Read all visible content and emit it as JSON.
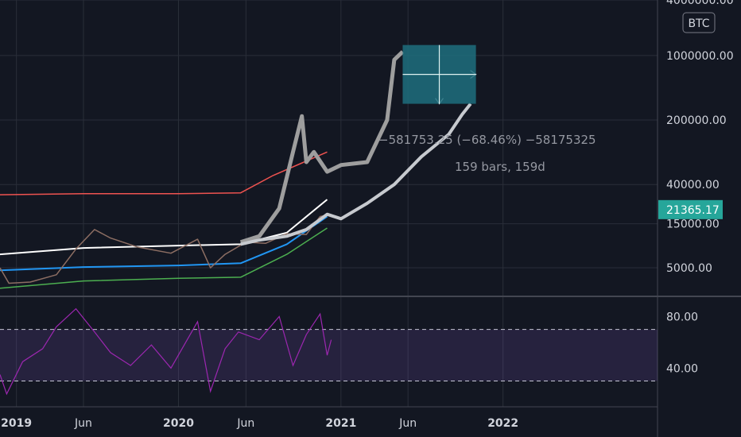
{
  "chart_data": {
    "type": "line",
    "symbol_badge": "BTC",
    "y_scale": "log",
    "price_axis": {
      "ylim": [
        2500,
        4000000
      ],
      "ticks": [
        {
          "value": 4000000,
          "label": "4000000.00"
        },
        {
          "value": 1000000,
          "label": "1000000.00"
        },
        {
          "value": 200000,
          "label": "200000.00"
        },
        {
          "value": 40000,
          "label": "40000.00"
        },
        {
          "value": 15000,
          "label": "15000.00"
        },
        {
          "value": 5000,
          "label": "5000.00"
        }
      ],
      "current_price": {
        "value": 21365.17,
        "label": "21365.17",
        "color": "#26a69a"
      }
    },
    "rsi_axis": {
      "ylim": [
        10,
        95
      ],
      "ticks": [
        {
          "value": 80,
          "label": "80.00"
        },
        {
          "value": 40,
          "label": "40.00"
        }
      ],
      "band": [
        30,
        70
      ]
    },
    "x_axis": {
      "xlim": [
        "2018-11-25",
        "2022-12-15"
      ],
      "ticks": [
        {
          "date": "2019-01-01",
          "label": "2019",
          "major": true
        },
        {
          "date": "2019-06-01",
          "label": "Jun",
          "major": false
        },
        {
          "date": "2020-01-01",
          "label": "2020",
          "major": true
        },
        {
          "date": "2020-06-01",
          "label": "Jun",
          "major": false
        },
        {
          "date": "2021-01-01",
          "label": "2021",
          "major": true
        },
        {
          "date": "2021-06-01",
          "label": "Jun",
          "major": false
        },
        {
          "date": "2022-01-01",
          "label": "2022",
          "major": true
        }
      ]
    },
    "series": [
      {
        "name": "",
        "role": "red-band",
        "color": "#ef5350",
        "x": [
          "2018-11-25",
          "2019-06-01",
          "2020-01-01",
          "2020-05-20",
          "2020-08-01",
          "2020-12-01"
        ],
        "y": [
          31000,
          31800,
          31800,
          32500,
          50000,
          90000
        ]
      },
      {
        "name": "",
        "role": "white-ma",
        "color": "#ffffff",
        "x": [
          "2018-11-25",
          "2019-06-01",
          "2020-01-01",
          "2020-05-20",
          "2020-09-01",
          "2020-12-01"
        ],
        "y": [
          7000,
          8200,
          8700,
          9000,
          12000,
          27500
        ]
      },
      {
        "name": "",
        "role": "blue-band",
        "color": "#2196f3",
        "x": [
          "2018-11-25",
          "2019-06-01",
          "2020-01-01",
          "2020-05-20",
          "2020-09-01",
          "2020-12-01"
        ],
        "y": [
          4700,
          5100,
          5300,
          5600,
          9000,
          18000
        ]
      },
      {
        "name": "",
        "role": "green-band",
        "color": "#4caf50",
        "x": [
          "2018-11-25",
          "2019-06-01",
          "2020-01-01",
          "2020-05-20",
          "2020-09-01",
          "2020-12-01"
        ],
        "y": [
          3000,
          3600,
          3850,
          3950,
          7000,
          13500
        ]
      },
      {
        "name": "",
        "role": "price-candles",
        "color": "#8d6e63",
        "x": [
          "2018-11-25",
          "2018-12-15",
          "2019-02-01",
          "2019-04-01",
          "2019-05-15",
          "2019-06-26",
          "2019-08-01",
          "2019-10-01",
          "2019-12-15",
          "2020-02-13",
          "2020-03-13",
          "2020-04-15",
          "2020-06-01",
          "2020-07-15",
          "2020-09-01",
          "2020-10-15",
          "2020-11-15",
          "2020-12-10"
        ],
        "y": [
          5000,
          3400,
          3500,
          4200,
          8000,
          13000,
          10500,
          8400,
          7200,
          10200,
          5000,
          7000,
          9500,
          9200,
          11700,
          11500,
          18000,
          19000
        ]
      },
      {
        "name": "",
        "role": "fractal-gray",
        "color": "#9e9e9e",
        "x": [
          "2020-05-20",
          "2020-07-01",
          "2020-08-15",
          "2020-09-15",
          "2020-10-05",
          "2020-10-15",
          "2020-11-01",
          "2020-12-01",
          "2021-01-01",
          "2021-03-01",
          "2021-04-15",
          "2021-05-01",
          "2021-05-20"
        ],
        "y": [
          9500,
          11000,
          22000,
          90000,
          220000,
          70000,
          90000,
          55000,
          65000,
          70000,
          200000,
          900000,
          1100000
        ]
      },
      {
        "name": "",
        "role": "fractal-white",
        "color": "#c7cacf",
        "x": [
          "2020-05-20",
          "2020-07-01",
          "2020-09-01",
          "2020-10-15",
          "2020-12-01",
          "2021-01-01",
          "2021-03-01",
          "2021-05-01",
          "2021-07-01",
          "2021-09-01",
          "2021-10-01",
          "2021-10-20"
        ],
        "y": [
          9000,
          10000,
          11000,
          13000,
          19000,
          17000,
          25000,
          40000,
          80000,
          140000,
          230000,
          300000
        ]
      }
    ],
    "rsi": {
      "name": "",
      "color": "#9c27b0",
      "x": [
        "2018-11-25",
        "2018-12-10",
        "2019-01-15",
        "2019-03-01",
        "2019-04-01",
        "2019-05-15",
        "2019-06-26",
        "2019-08-01",
        "2019-09-15",
        "2019-11-01",
        "2019-12-15",
        "2020-02-13",
        "2020-03-13",
        "2020-04-15",
        "2020-05-15",
        "2020-07-01",
        "2020-08-15",
        "2020-09-15",
        "2020-10-15",
        "2020-11-15",
        "2020-12-01",
        "2020-12-10"
      ],
      "y": [
        35,
        20,
        45,
        55,
        72,
        86,
        68,
        52,
        42,
        58,
        40,
        76,
        22,
        55,
        68,
        62,
        80,
        42,
        66,
        82,
        50,
        62
      ]
    },
    "annotations": {
      "measure_line1": "−581753.25 (−68.46%) −58175325",
      "measure_line2": "159 bars, 159d",
      "box": {
        "x0": "2021-05-20",
        "x1": "2021-11-01",
        "y0": 300000,
        "y1": 1300000,
        "color": "#1e6e7e"
      }
    }
  }
}
